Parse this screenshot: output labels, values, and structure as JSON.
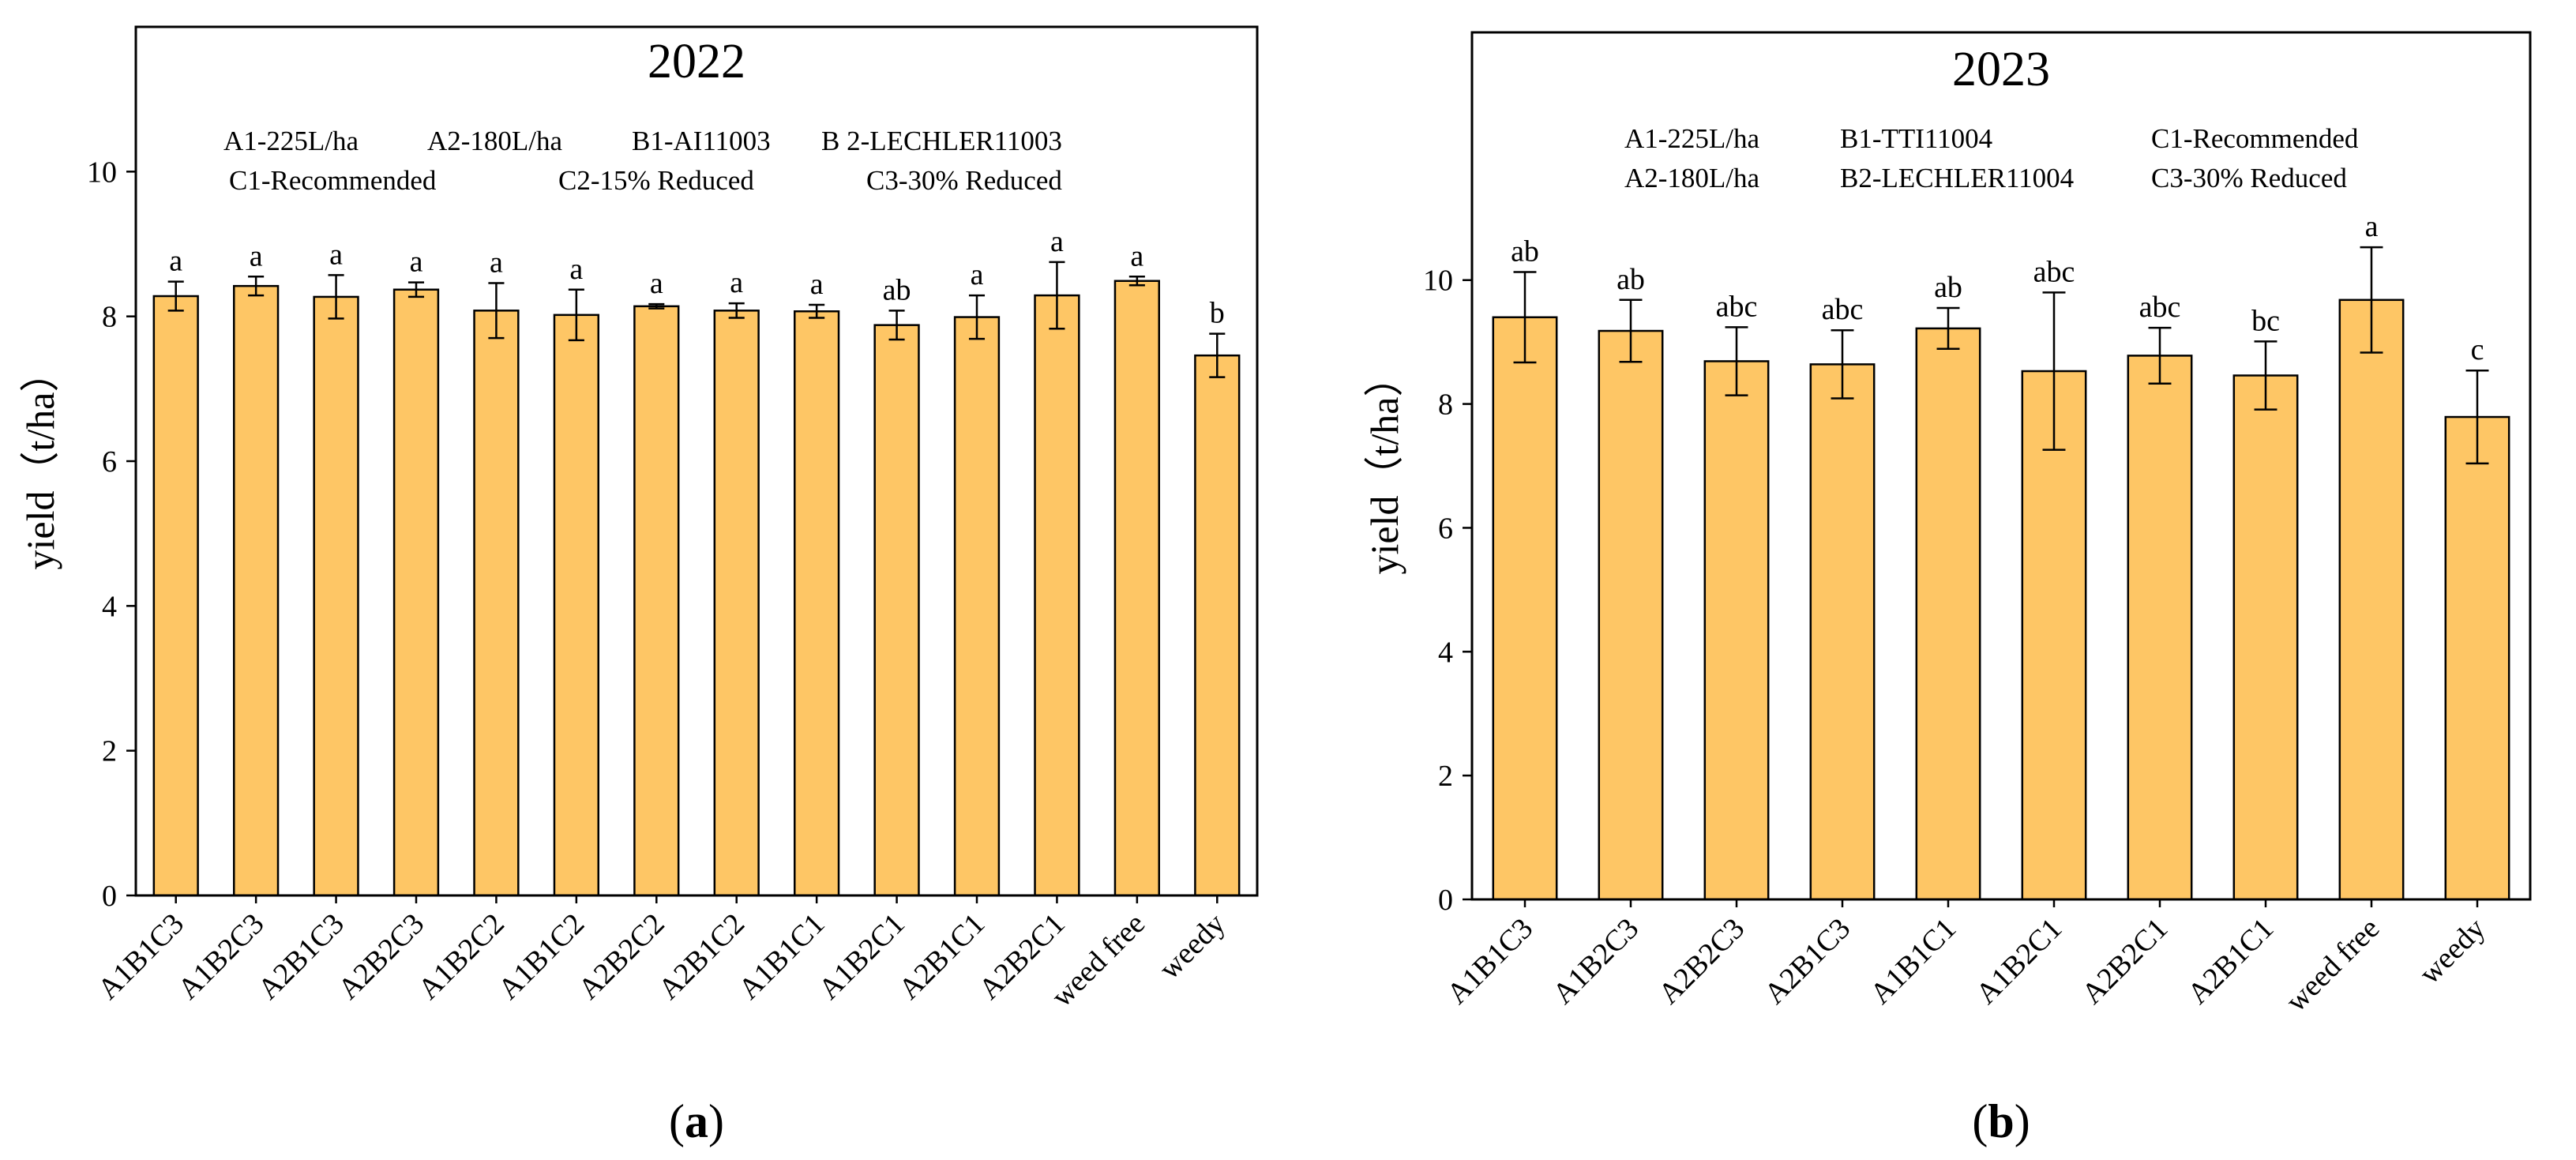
{
  "colors": {
    "bar": "#fec665",
    "stroke": "#000000",
    "background": "#ffffff"
  },
  "chart_data": [
    {
      "type": "bar",
      "panel_label": "(a)",
      "panel_letter": "a",
      "title": "2022",
      "ylabel": "yield（t/ha）",
      "xlabel": "",
      "ylim": [
        0,
        12
      ],
      "yticks": [
        0,
        2,
        4,
        6,
        8,
        10
      ],
      "legend_lines": [
        [
          "A1-225L/ha",
          "A2-180L/ha",
          "B1-AI11003",
          "B 2-LECHLER11003"
        ],
        [
          "C1-Recommended",
          "C2-15% Reduced",
          "C3-30% Reduced"
        ]
      ],
      "categories": [
        "A1B1C3",
        "A1B2C3",
        "A2B1C3",
        "A2B2C3",
        "A1B2C2",
        "A1B1C2",
        "A2B2C2",
        "A2B1C2",
        "A1B1C1",
        "A1B2C1",
        "A2B1C1",
        "A2B2C1",
        "weed free",
        "weedy"
      ],
      "values": [
        8.28,
        8.42,
        8.27,
        8.37,
        8.08,
        8.02,
        8.14,
        8.08,
        8.07,
        7.88,
        7.99,
        8.29,
        8.49,
        7.46
      ],
      "errors": [
        0.2,
        0.13,
        0.3,
        0.1,
        0.38,
        0.35,
        0.03,
        0.1,
        0.09,
        0.2,
        0.3,
        0.46,
        0.06,
        0.3
      ],
      "significance": [
        "a",
        "a",
        "a",
        "a",
        "a",
        "a",
        "a",
        "a",
        "a",
        "ab",
        "a",
        "a",
        "a",
        "b"
      ]
    },
    {
      "type": "bar",
      "panel_label": "(b)",
      "panel_letter": "b",
      "title": "2023",
      "ylabel": "yield（t/ha）",
      "xlabel": "",
      "ylim": [
        0,
        14
      ],
      "yticks": [
        0,
        2,
        4,
        6,
        8,
        10
      ],
      "legend_lines": [
        [
          "A1-225L/ha",
          "B1-TTI11004",
          "C1-Recommended"
        ],
        [
          "A2-180L/ha",
          "B2-LECHLER11004",
          "C3-30% Reduced"
        ]
      ],
      "categories": [
        "A1B1C3",
        "A1B2C3",
        "A2B2C3",
        "A2B1C3",
        "A1B1C1",
        "A1B2C1",
        "A2B2C1",
        "A2B1C1",
        "weed free",
        "weedy"
      ],
      "values": [
        9.4,
        9.18,
        8.69,
        8.64,
        9.22,
        8.53,
        8.78,
        8.46,
        9.68,
        7.79
      ],
      "errors": [
        0.73,
        0.5,
        0.55,
        0.55,
        0.33,
        1.27,
        0.45,
        0.55,
        0.85,
        0.75
      ],
      "significance": [
        "ab",
        "ab",
        "abc",
        "abc",
        "ab",
        "abc",
        "abc",
        "bc",
        "a",
        "c"
      ]
    }
  ]
}
